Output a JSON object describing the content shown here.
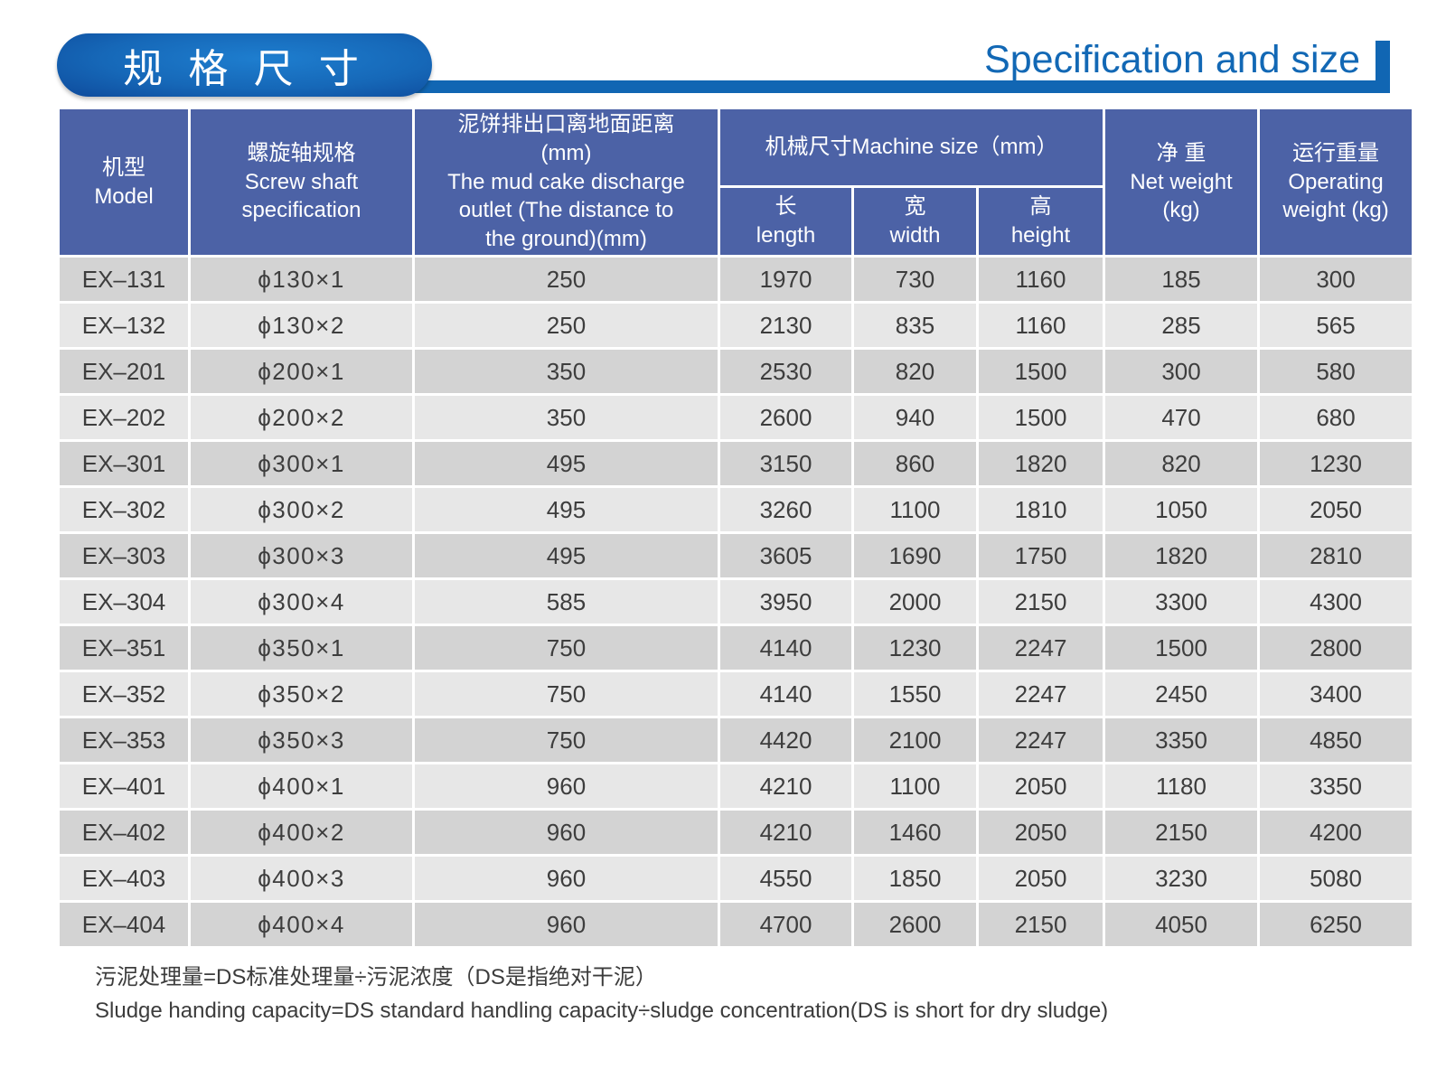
{
  "title": {
    "zh": "规 格 尺 寸",
    "en": "Specification and size"
  },
  "colors": {
    "accent_blue": "#1166b3",
    "title_text_blue": "#1268b5",
    "header_bg": "#4c62a6",
    "row_dark": "#d3d3d3",
    "row_light": "#e7e7e7",
    "cell_text": "#3d3d3d"
  },
  "table": {
    "headers": {
      "model": "机型\nModel",
      "screw_shaft": "螺旋轴规格\nScrew shaft\nspecification",
      "mud_cake_outlet": "泥饼排出口离地面距离\n(mm)\nThe mud cake discharge\noutlet (The distance to\nthe ground)(mm)",
      "machine_size": "机械尺寸Machine size（mm）",
      "length": "长\nlength",
      "width": "宽\nwidth",
      "height": "高\nheight",
      "net_weight": "净 重\nNet weight\n(kg)",
      "operating_weight": "运行重量\nOperating\nweight (kg)"
    },
    "column_keys": [
      "model",
      "spec",
      "outlet",
      "length",
      "width",
      "height",
      "net_weight",
      "operating_weight"
    ],
    "rows": [
      {
        "model": "EX–131",
        "spec": "ϕ130×1",
        "outlet": "250",
        "length": "1970",
        "width": "730",
        "height": "1160",
        "net_weight": "185",
        "operating_weight": "300"
      },
      {
        "model": "EX–132",
        "spec": "ϕ130×2",
        "outlet": "250",
        "length": "2130",
        "width": "835",
        "height": "1160",
        "net_weight": "285",
        "operating_weight": "565"
      },
      {
        "model": "EX–201",
        "spec": "ϕ200×1",
        "outlet": "350",
        "length": "2530",
        "width": "820",
        "height": "1500",
        "net_weight": "300",
        "operating_weight": "580"
      },
      {
        "model": "EX–202",
        "spec": "ϕ200×2",
        "outlet": "350",
        "length": "2600",
        "width": "940",
        "height": "1500",
        "net_weight": "470",
        "operating_weight": "680"
      },
      {
        "model": "EX–301",
        "spec": "ϕ300×1",
        "outlet": "495",
        "length": "3150",
        "width": "860",
        "height": "1820",
        "net_weight": "820",
        "operating_weight": "1230"
      },
      {
        "model": "EX–302",
        "spec": "ϕ300×2",
        "outlet": "495",
        "length": "3260",
        "width": "1100",
        "height": "1810",
        "net_weight": "1050",
        "operating_weight": "2050"
      },
      {
        "model": "EX–303",
        "spec": "ϕ300×3",
        "outlet": "495",
        "length": "3605",
        "width": "1690",
        "height": "1750",
        "net_weight": "1820",
        "operating_weight": "2810"
      },
      {
        "model": "EX–304",
        "spec": "ϕ300×4",
        "outlet": "585",
        "length": "3950",
        "width": "2000",
        "height": "2150",
        "net_weight": "3300",
        "operating_weight": "4300"
      },
      {
        "model": "EX–351",
        "spec": "ϕ350×1",
        "outlet": "750",
        "length": "4140",
        "width": "1230",
        "height": "2247",
        "net_weight": "1500",
        "operating_weight": "2800"
      },
      {
        "model": "EX–352",
        "spec": "ϕ350×2",
        "outlet": "750",
        "length": "4140",
        "width": "1550",
        "height": "2247",
        "net_weight": "2450",
        "operating_weight": "3400"
      },
      {
        "model": "EX–353",
        "spec": "ϕ350×3",
        "outlet": "750",
        "length": "4420",
        "width": "2100",
        "height": "2247",
        "net_weight": "3350",
        "operating_weight": "4850"
      },
      {
        "model": "EX–401",
        "spec": "ϕ400×1",
        "outlet": "960",
        "length": "4210",
        "width": "1100",
        "height": "2050",
        "net_weight": "1180",
        "operating_weight": "3350"
      },
      {
        "model": "EX–402",
        "spec": "ϕ400×2",
        "outlet": "960",
        "length": "4210",
        "width": "1460",
        "height": "2050",
        "net_weight": "2150",
        "operating_weight": "4200"
      },
      {
        "model": "EX–403",
        "spec": "ϕ400×3",
        "outlet": "960",
        "length": "4550",
        "width": "1850",
        "height": "2050",
        "net_weight": "3230",
        "operating_weight": "5080"
      },
      {
        "model": "EX–404",
        "spec": "ϕ400×4",
        "outlet": "960",
        "length": "4700",
        "width": "2600",
        "height": "2150",
        "net_weight": "4050",
        "operating_weight": "6250"
      }
    ]
  },
  "notes": {
    "zh": "污泥处理量=DS标准处理量÷污泥浓度（DS是指绝对干泥）",
    "en": "Sludge handing capacity=DS standard handling capacity÷sludge concentration(DS is short for dry sludge)"
  }
}
